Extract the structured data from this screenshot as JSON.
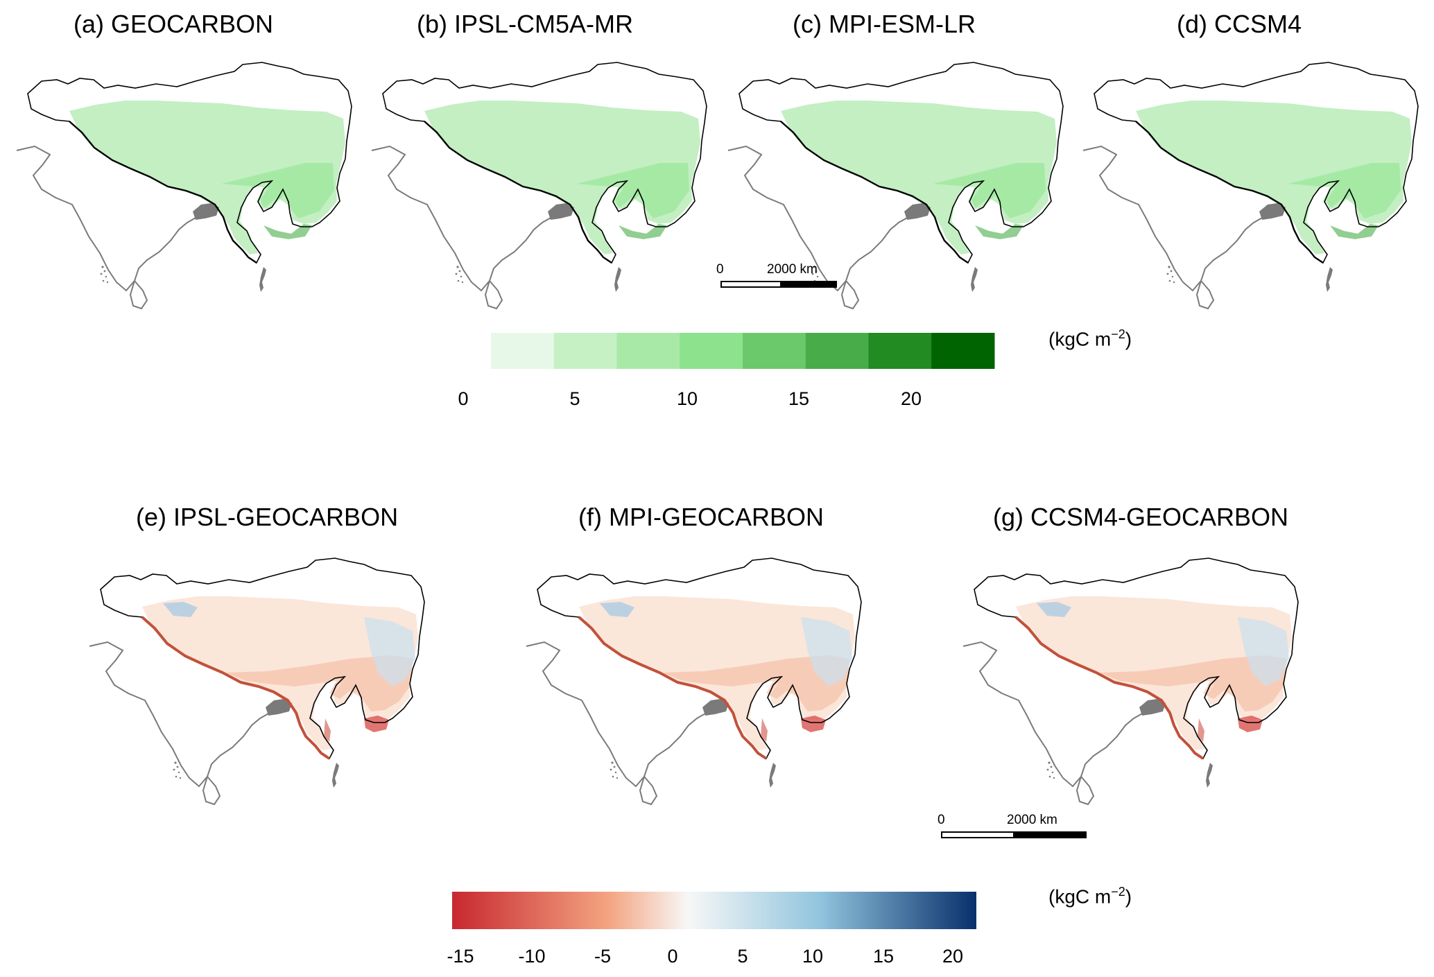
{
  "panels": [
    {
      "label": "(a) GEOCARBON"
    },
    {
      "label": "(b) IPSL-CM5A-MR"
    },
    {
      "label": "(c) MPI-ESM-LR"
    },
    {
      "label": "(d) CCSM4"
    },
    {
      "label": "(e) IPSL-GEOCARBON"
    },
    {
      "label": "(f) MPI-GEOCARBON"
    },
    {
      "label": "(g) CCSM4-GEOCARBON"
    }
  ],
  "legend_top": {
    "type": "discrete",
    "ticks": [
      "0",
      "5",
      "10",
      "15",
      "20"
    ],
    "unit_base": "(kgC m",
    "unit_exp": "−2",
    "unit_close": ")",
    "colors": [
      "#e8f8e8",
      "#c5f1c5",
      "#a8e9a8",
      "#8de38d",
      "#6bc96b",
      "#48ad48",
      "#228b22",
      "#006400"
    ]
  },
  "legend_bottom": {
    "type": "continuous",
    "ticks": [
      "-15",
      "-10",
      "-5",
      "0",
      "5",
      "10",
      "15",
      "20"
    ],
    "unit_base": "(kgC m",
    "unit_exp": "−2",
    "unit_close": ")",
    "colors": [
      "#c7282f",
      "#f4a582",
      "#f7f7f7",
      "#92c5de",
      "#08306b"
    ]
  },
  "scalebar_top": {
    "start": "0",
    "end": "2000 km"
  },
  "scalebar_bottom": {
    "start": "0",
    "end": "2000 km"
  }
}
